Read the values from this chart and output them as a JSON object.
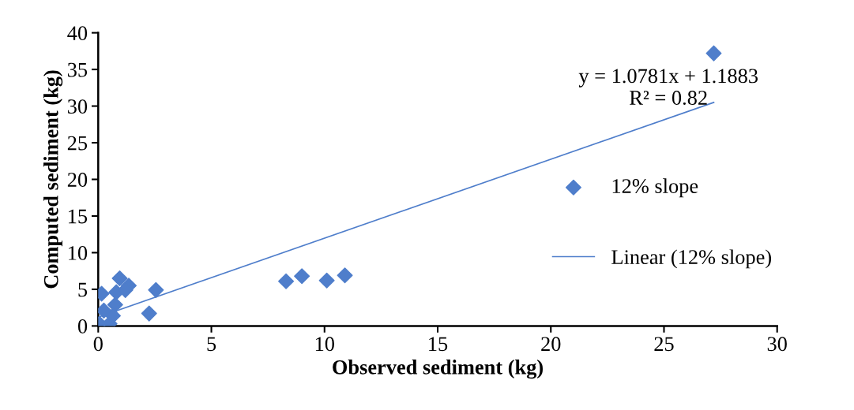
{
  "chart_data": {
    "type": "scatter",
    "xlabel": "Observed sediment (kg)",
    "ylabel": "Computed sediment (kg)",
    "xlim": [
      0,
      30
    ],
    "ylim": [
      0,
      40
    ],
    "xticks": [
      0,
      5,
      10,
      15,
      20,
      25,
      30
    ],
    "yticks": [
      0,
      5,
      10,
      15,
      20,
      25,
      30,
      35,
      40
    ],
    "grid": false,
    "legend": "right",
    "annotations": [
      "y = 1.0781x + 1.1883\nR² = 0.82"
    ],
    "series": [
      {
        "name": "12% slope",
        "marker": "diamond",
        "color": "#4f7ecb",
        "x": [
          27.2,
          8.3,
          9.0,
          10.1,
          10.9,
          2.55,
          2.25,
          0.95,
          0.15,
          0.8,
          1.35,
          1.2,
          0.75,
          0.15,
          0.05,
          0.5,
          0.65,
          0.25
        ],
        "values": [
          37.2,
          6.1,
          6.8,
          6.2,
          6.9,
          4.9,
          1.7,
          6.5,
          4.4,
          4.6,
          5.5,
          4.9,
          2.9,
          null,
          0.3,
          0.3,
          1.4,
          2.1
        ]
      },
      {
        "name": "Linear (12% slope)",
        "type": "line",
        "marker": "none",
        "color": "#4f7ecb",
        "line_style": "solid",
        "x": [
          0,
          27.2
        ],
        "values": [
          1.2,
          30.5
        ]
      }
    ]
  }
}
